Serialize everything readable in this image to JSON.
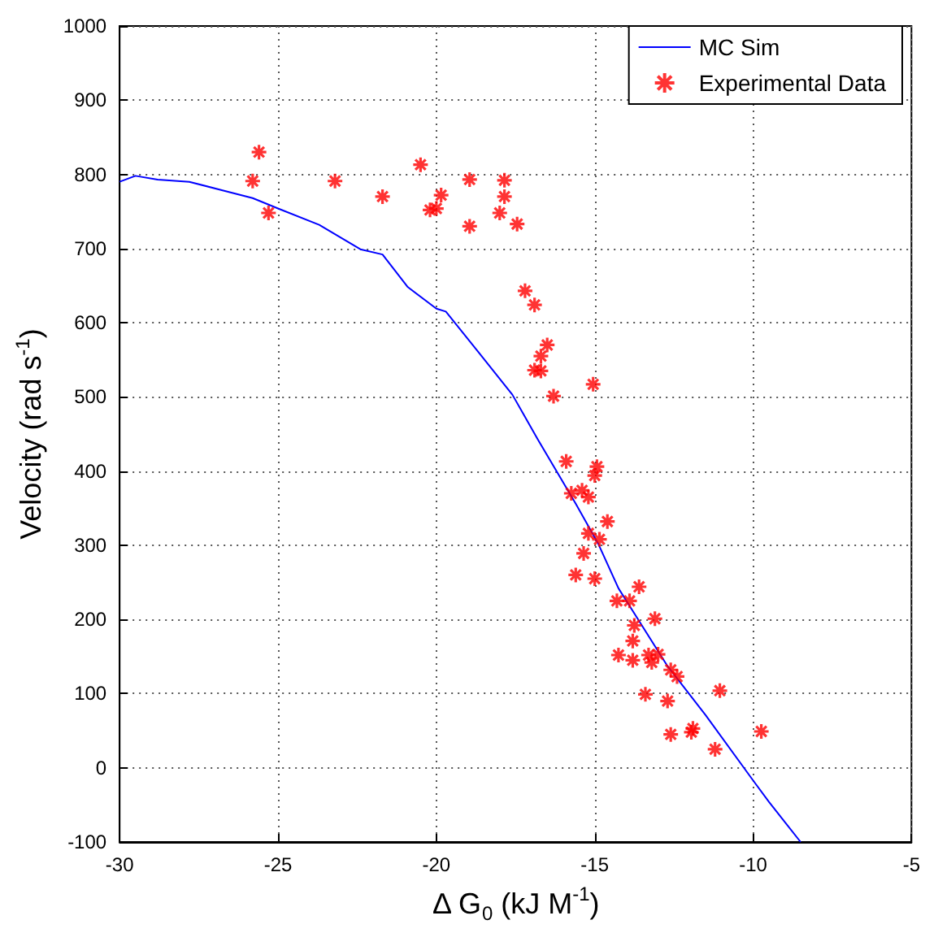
{
  "chart_data": {
    "type": "scatter",
    "xlabel": "Δ G$_{0}$ (kJ M$^{-1}$)",
    "ylabel": "Velocity (rad s$^{-1}$)",
    "xlim": [
      -30,
      -5
    ],
    "xticks": [
      -30,
      -25,
      -20,
      -15,
      -10,
      -5
    ],
    "ylim": [
      -100,
      1000
    ],
    "yticks": [
      -100,
      0,
      100,
      200,
      300,
      400,
      500,
      600,
      700,
      800,
      900,
      1000
    ],
    "grid": true,
    "legend": "top right",
    "series": [
      {
        "name": "MC Sim",
        "type": "line",
        "marker": "none",
        "line_style": "solid",
        "color": "#0000ff",
        "x": [
          -30,
          -29.5,
          -28.8,
          -27.8,
          -26.8,
          -25.8,
          -25,
          -23.7,
          -22.4,
          -21.7,
          -20.9,
          -20,
          -19.7,
          -18.7,
          -17.6,
          -16.8,
          -15.6,
          -14.9,
          -14.25,
          -12.7,
          -11.5,
          -10,
          -9.5,
          -8.5
        ],
        "values": [
          790,
          798,
          793,
          790,
          779,
          768,
          754,
          732,
          699,
          692,
          648,
          619,
          615,
          562,
          503,
          443,
          356,
          303,
          242,
          137,
          71,
          -17,
          -46,
          -100
        ]
      },
      {
        "name": "Experimental Data",
        "marker": "cross",
        "color": "#ff0000",
        "x": [
          -25.6,
          -25.8,
          -25.3,
          -23.2,
          -21.7,
          -20.5,
          -20.2,
          -20.0,
          -19.85,
          -18.95,
          -18.95,
          -17.85,
          -17.85,
          -18.0,
          -17.45,
          -17.2,
          -16.9,
          -16.5,
          -16.7,
          -16.9,
          -16.7,
          -15.05,
          -16.3,
          -15.9,
          -14.93,
          -15.0,
          -15.74,
          -15.4,
          -15.2,
          -14.6,
          -15.2,
          -14.85,
          -15.35,
          -15.6,
          -15.0,
          -13.6,
          -14.3,
          -13.9,
          -13.1,
          -13.75,
          -13.8,
          -14.25,
          -13.8,
          -13.3,
          -13.2,
          -13.0,
          -12.6,
          -12.4,
          -13.4,
          -11.05,
          -12.7,
          -12.6,
          -11.9,
          -11.95,
          -9.74,
          -11.2
        ],
        "values": [
          830,
          791,
          748,
          791,
          770,
          813,
          752,
          754,
          772,
          793,
          730,
          792,
          770,
          748,
          733,
          643,
          624,
          570,
          555,
          536,
          535,
          517,
          501,
          413,
          406,
          394,
          370,
          374,
          365,
          332,
          316,
          308,
          289,
          260,
          255,
          244,
          225,
          225,
          201,
          192,
          171,
          152,
          145,
          152,
          142,
          153,
          132,
          123,
          99,
          104,
          90,
          45,
          53,
          48,
          49,
          25
        ]
      }
    ]
  }
}
